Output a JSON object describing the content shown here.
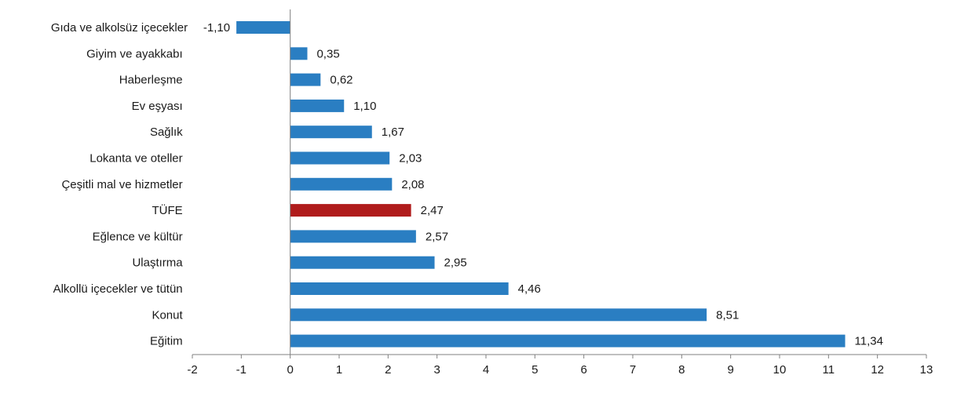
{
  "chart_data": {
    "type": "bar",
    "orientation": "horizontal",
    "categories": [
      "Gıda ve alkolsüz içecekler",
      "Giyim ve ayakkabı",
      "Haberleşme",
      "Ev eşyası",
      "Sağlık",
      "Lokanta ve oteller",
      "Çeşitli mal ve hizmetler",
      "TÜFE",
      "Eğlence ve kültür",
      "Ulaştırma",
      "Alkollü içecekler ve tütün",
      "Konut",
      "Eğitim"
    ],
    "values": [
      -1.1,
      0.35,
      0.62,
      1.1,
      1.67,
      2.03,
      2.08,
      2.47,
      2.57,
      2.95,
      4.46,
      8.51,
      11.34
    ],
    "value_labels": [
      "-1,10",
      "0,35",
      "0,62",
      "1,10",
      "1,67",
      "2,03",
      "2,08",
      "2,47",
      "2,57",
      "2,95",
      "4,46",
      "8,51",
      "11,34"
    ],
    "highlight_category": "TÜFE",
    "xlim": [
      -2,
      13
    ],
    "x_ticks": [
      -2,
      -1,
      0,
      1,
      2,
      3,
      4,
      5,
      6,
      7,
      8,
      9,
      10,
      11,
      12,
      13
    ],
    "grid": false,
    "legend": "none",
    "colors": {
      "bar": "#2a7ec2",
      "highlight": "#b01c1c",
      "axis": "#808080",
      "text": "#1a1a1a"
    },
    "title": "",
    "xlabel": "",
    "ylabel": ""
  }
}
